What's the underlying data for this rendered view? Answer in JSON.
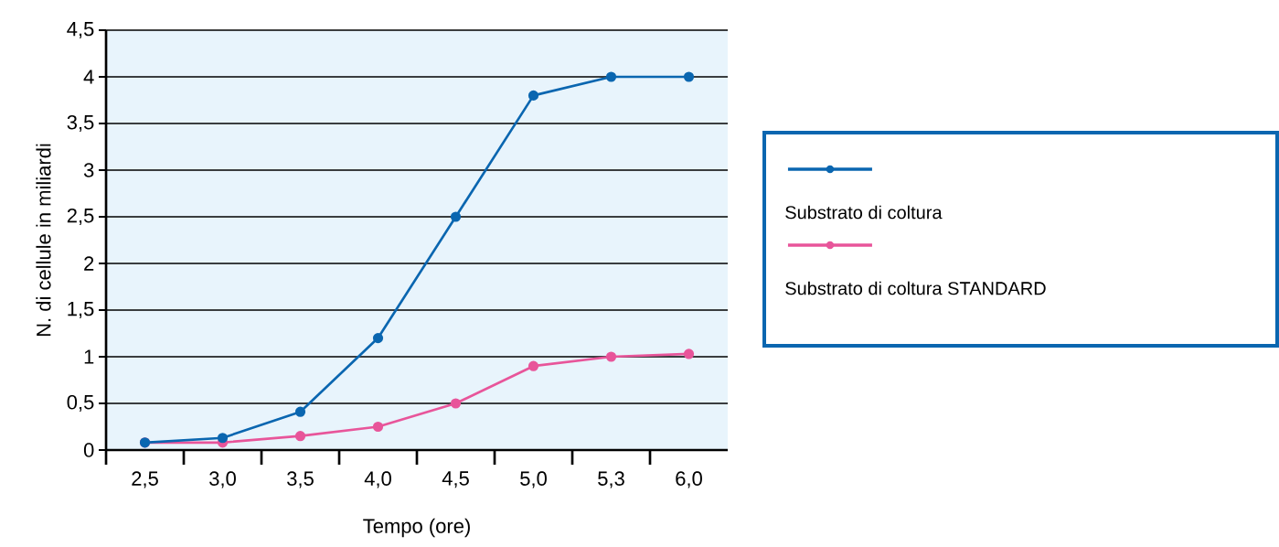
{
  "chart_data": {
    "type": "line",
    "xlabel": "Tempo (ore)",
    "ylabel": "N. di cellule in miliardi",
    "categories": [
      "2,5",
      "3,0",
      "3,5",
      "4,0",
      "4,5",
      "5,0",
      "5,3",
      "6,0"
    ],
    "series": [
      {
        "name": "Substrato di coltura",
        "color": "#0a66b0",
        "values": [
          0.08,
          0.13,
          0.41,
          1.2,
          2.5,
          3.8,
          4.0,
          4.0
        ]
      },
      {
        "name": "Substrato di coltura STANDARD",
        "color": "#e8559a",
        "values": [
          0.08,
          0.08,
          0.15,
          0.25,
          0.5,
          0.9,
          1.0,
          1.03
        ]
      }
    ],
    "ylim": [
      0,
      4.5
    ],
    "yticks": [
      0,
      {
        "value": 0.5,
        "label": "0,5"
      },
      1,
      {
        "value": 1.5,
        "label": "1,5"
      },
      2,
      {
        "value": 2.5,
        "label": "2,5"
      },
      3,
      {
        "value": 3.5,
        "label": "3,5"
      },
      4,
      {
        "value": 4.5,
        "label": "4,5"
      }
    ],
    "grid": "y",
    "legend": "right",
    "marker": "circle",
    "line_style": "solid"
  }
}
